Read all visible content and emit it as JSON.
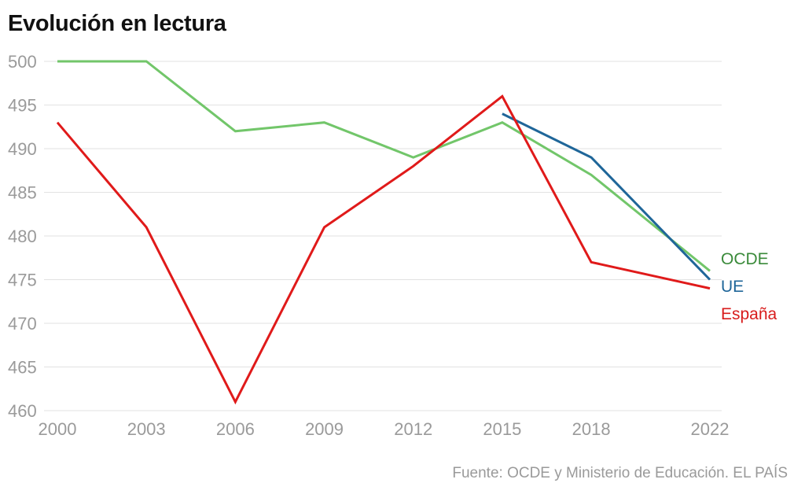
{
  "chart_data": {
    "type": "line",
    "title": "Evolución en lectura",
    "xlabel": "",
    "ylabel": "",
    "x": [
      2000,
      2003,
      2006,
      2009,
      2012,
      2015,
      2018,
      2022
    ],
    "xticks": [
      "2000",
      "2003",
      "2006",
      "2009",
      "2012",
      "2015",
      "2018",
      "2022"
    ],
    "yticks": [
      "460",
      "465",
      "470",
      "475",
      "480",
      "485",
      "490",
      "495",
      "500"
    ],
    "ylim": [
      460,
      500
    ],
    "grid": true,
    "legend": "right-inline",
    "series": [
      {
        "name": "OCDE",
        "color": "#72c66a",
        "values": [
          500,
          500,
          492,
          493,
          489,
          493,
          487,
          476
        ]
      },
      {
        "name": "UE",
        "color": "#1f6699",
        "values": [
          null,
          null,
          null,
          null,
          null,
          494,
          489,
          475
        ]
      },
      {
        "name": "España",
        "color": "#e01a1a",
        "values": [
          493,
          481,
          461,
          481,
          488,
          496,
          477,
          474
        ]
      }
    ],
    "source": "Fuente: OCDE y Ministerio de Educación. EL PAÍS"
  },
  "labels": {
    "ocde": "OCDE",
    "ocde_color": "#3a8a3a",
    "ue": "UE",
    "ue_color": "#1f6699",
    "espana": "España",
    "espana_color": "#d81c1c"
  }
}
